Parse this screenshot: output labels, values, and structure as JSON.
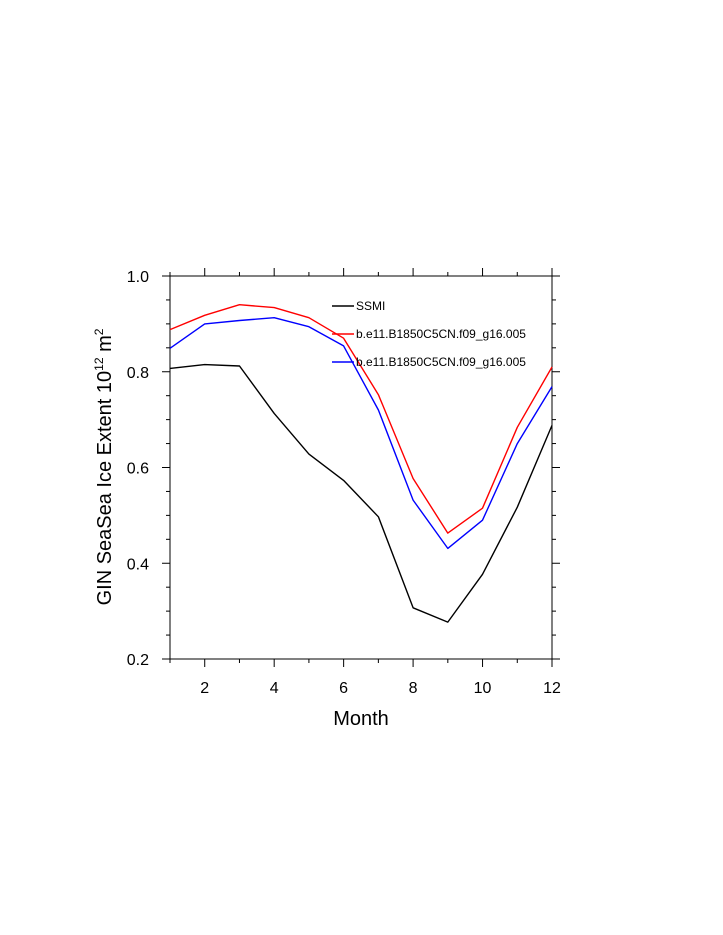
{
  "chart_data": {
    "type": "line",
    "xlabel": "Month",
    "ylabel_main": "GIN SeaSea Ice Extent 10",
    "ylabel_sup": "12",
    "ylabel_unit": " m",
    "ylabel_unit_sup": "2",
    "xlim": [
      1,
      12
    ],
    "ylim": [
      0.2,
      1.0
    ],
    "xticks": [
      2,
      4,
      6,
      8,
      10,
      12
    ],
    "yticks": [
      0.2,
      0.4,
      0.6,
      0.8,
      1.0
    ],
    "ytick_labels": [
      "0.2",
      "0.4",
      "0.6",
      "0.8",
      "1.0"
    ],
    "grid": false,
    "legend_position": "top-right",
    "x": [
      1,
      2,
      3,
      4,
      5,
      6,
      7,
      8,
      9,
      10,
      11,
      12
    ],
    "series": [
      {
        "name": "SSMI",
        "color": "#000000",
        "values": [
          0.807,
          0.815,
          0.812,
          0.713,
          0.628,
          0.573,
          0.497,
          0.307,
          0.277,
          0.377,
          0.517,
          0.688
        ]
      },
      {
        "name": "b.e11.B1850C5CN.f09_g16.005",
        "color": "#ff0000",
        "values": [
          0.888,
          0.918,
          0.94,
          0.934,
          0.913,
          0.87,
          0.752,
          0.577,
          0.463,
          0.515,
          0.684,
          0.81
        ]
      },
      {
        "name": "b.e11.B1850C5CN.f09_g16.005",
        "color": "#0000ff",
        "values": [
          0.849,
          0.9,
          0.907,
          0.913,
          0.894,
          0.854,
          0.72,
          0.532,
          0.431,
          0.49,
          0.65,
          0.769
        ]
      }
    ]
  }
}
